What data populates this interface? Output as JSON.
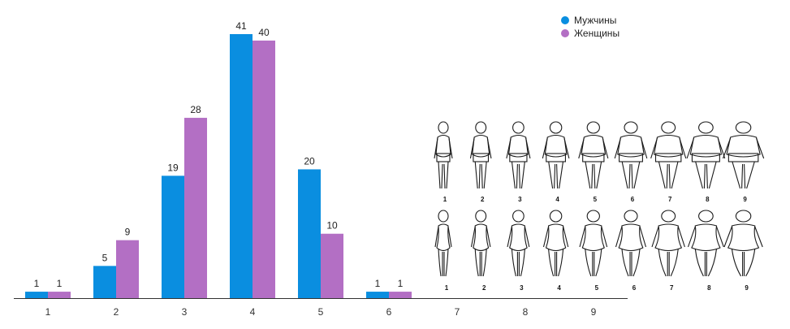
{
  "chart_data": {
    "type": "bar",
    "title": "",
    "xlabel": "",
    "ylabel": "",
    "categories": [
      "1",
      "2",
      "3",
      "4",
      "5",
      "6",
      "7",
      "8",
      "9"
    ],
    "series": [
      {
        "name": "Мужчины",
        "color": "#0a8ee0",
        "values": [
          1,
          5,
          19,
          41,
          20,
          1,
          null,
          null,
          null
        ]
      },
      {
        "name": "Женщины",
        "color": "#b36fc4",
        "values": [
          1,
          9,
          28,
          40,
          10,
          1,
          null,
          null,
          null
        ]
      }
    ],
    "ylim": [
      0,
      41
    ],
    "grid": false,
    "legend_position": "top-right",
    "data_labels": true
  },
  "figure_scale": {
    "men_numbers": [
      "1",
      "2",
      "3",
      "4",
      "5",
      "6",
      "7",
      "8",
      "9"
    ],
    "women_numbers": [
      "1",
      "2",
      "3",
      "4",
      "5",
      "6",
      "7",
      "8",
      "9"
    ]
  }
}
